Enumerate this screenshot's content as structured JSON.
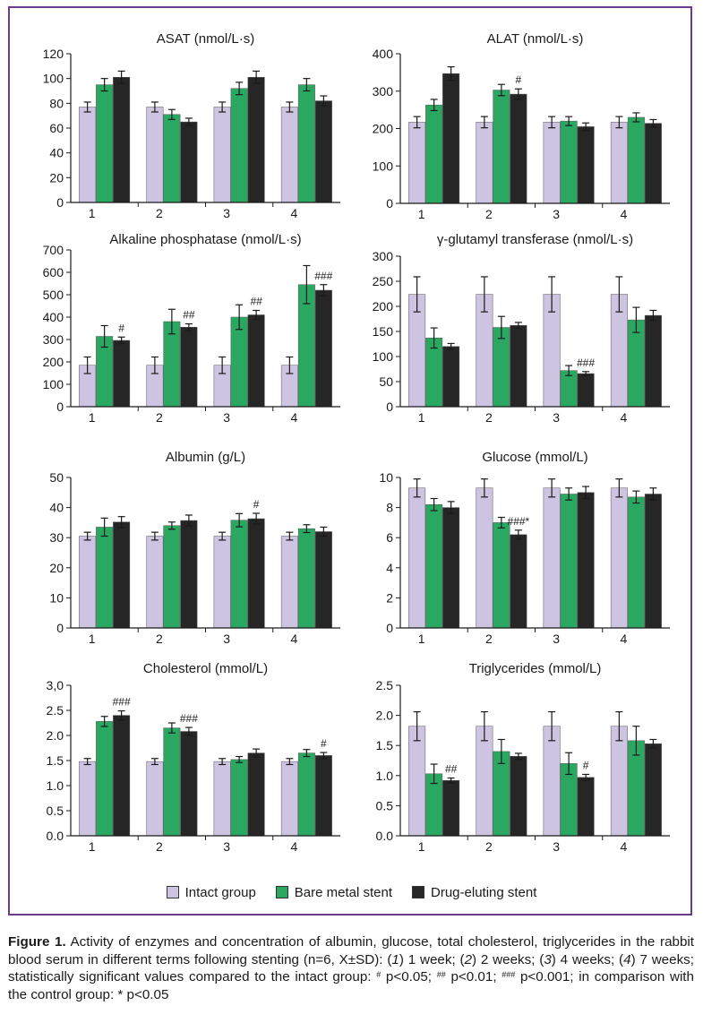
{
  "colors": {
    "frame": "#6b3b8c",
    "intact": "#cdc4e2",
    "bare": "#2aa862",
    "drug": "#262626"
  },
  "legend": {
    "items": [
      {
        "label": "Intact group",
        "color": "#cdc4e2"
      },
      {
        "label": "Bare metal stent",
        "color": "#2aa862"
      },
      {
        "label": "Drug-eluting stent",
        "color": "#262626"
      }
    ]
  },
  "caption": {
    "label": "Figure 1.",
    "text1": " Activity of enzymes and concentration of albumin, glucose, total cholesterol, triglycerides in the rabbit blood serum in different terms following stenting (n=6, X±SD): (",
    "t1": "1",
    "text2": ") 1 week; (",
    "t2": "2",
    "text3": ") 2 weeks; (",
    "t3": "3",
    "text4": ") 4 weeks; (",
    "t4": "4",
    "text5": ") 7 weeks; statistically significant values compared to the intact group: ",
    "sup1": "#",
    "text6": " p<0.05; ",
    "sup2": "##",
    "text7": " p<0.01; ",
    "sup3": "###",
    "text8": " p<0.001; in comparison with the control group: * p<0.05"
  },
  "chart_data": [
    {
      "type": "bar",
      "title": "ASAT (nmol/L·s)",
      "categories": [
        "1",
        "2",
        "3",
        "4"
      ],
      "yticks": [
        "0",
        "20",
        "40",
        "60",
        "80",
        "100",
        "120"
      ],
      "ylim": [
        0,
        120
      ],
      "series": [
        {
          "name": "Intact group",
          "values": [
            77,
            77,
            77,
            77
          ],
          "errors": [
            4,
            4,
            4,
            4
          ]
        },
        {
          "name": "Bare metal stent",
          "values": [
            95,
            71,
            92,
            95
          ],
          "errors": [
            5,
            4,
            5,
            5
          ]
        },
        {
          "name": "Drug-eluting stent",
          "values": [
            101,
            65,
            101,
            82
          ],
          "errors": [
            5,
            3,
            5,
            4
          ]
        }
      ],
      "annotations": []
    },
    {
      "type": "bar",
      "title": "ALAT (nmol/L·s)",
      "categories": [
        "1",
        "2",
        "3",
        "4"
      ],
      "yticks": [
        "0",
        "100",
        "200",
        "300",
        "400"
      ],
      "ylim": [
        0,
        400
      ],
      "series": [
        {
          "name": "Intact group",
          "values": [
            217,
            217,
            217,
            217
          ],
          "errors": [
            15,
            15,
            15,
            15
          ]
        },
        {
          "name": "Bare metal stent",
          "values": [
            263,
            303,
            220,
            230
          ],
          "errors": [
            15,
            15,
            12,
            12
          ]
        },
        {
          "name": "Drug-eluting stent",
          "values": [
            347,
            292,
            205,
            214
          ],
          "errors": [
            18,
            14,
            10,
            10
          ]
        }
      ],
      "annotations": [
        {
          "text": "#",
          "category": 1,
          "series": 2
        }
      ]
    },
    {
      "type": "bar",
      "title": "Alkaline phosphatase (nmol/L·s)",
      "categories": [
        "1",
        "2",
        "3",
        "4"
      ],
      "yticks": [
        "0",
        "100",
        "200",
        "300",
        "400",
        "500",
        "600",
        "700"
      ],
      "ylim": [
        0,
        700
      ],
      "series": [
        {
          "name": "Intact group",
          "values": [
            185,
            185,
            185,
            185
          ],
          "errors": [
            37,
            37,
            37,
            37
          ]
        },
        {
          "name": "Bare metal stent",
          "values": [
            314,
            380,
            400,
            545
          ],
          "errors": [
            48,
            55,
            55,
            85
          ]
        },
        {
          "name": "Drug-eluting stent",
          "values": [
            296,
            355,
            410,
            520
          ],
          "errors": [
            15,
            15,
            20,
            25
          ]
        }
      ],
      "annotations": [
        {
          "text": "#",
          "category": 0,
          "series": 2
        },
        {
          "text": "##",
          "category": 1,
          "series": 2
        },
        {
          "text": "##",
          "category": 2,
          "series": 2
        },
        {
          "text": "###",
          "category": 3,
          "series": 2
        }
      ]
    },
    {
      "type": "bar",
      "title": "γ-glutamyl transferase  (nmol/L·s)",
      "categories": [
        "1",
        "2",
        "3",
        "4"
      ],
      "yticks": [
        "0",
        "50",
        "100",
        "150",
        "200",
        "250",
        "300"
      ],
      "ylim": [
        0,
        300
      ],
      "series": [
        {
          "name": "Intact group",
          "values": [
            224,
            224,
            224,
            224
          ],
          "errors": [
            35,
            35,
            35,
            35
          ]
        },
        {
          "name": "Bare metal stent",
          "values": [
            137,
            158,
            72,
            173
          ],
          "errors": [
            20,
            22,
            10,
            25
          ]
        },
        {
          "name": "Drug-eluting stent",
          "values": [
            120,
            162,
            66,
            182
          ],
          "errors": [
            6,
            6,
            4,
            10
          ]
        }
      ],
      "annotations": [
        {
          "text": "###",
          "category": 2,
          "series": 2
        }
      ]
    },
    {
      "type": "bar",
      "title": "Albumin (g/L)",
      "categories": [
        "1",
        "2",
        "3",
        "4"
      ],
      "yticks": [
        "0",
        "10",
        "20",
        "30",
        "40",
        "50"
      ],
      "ylim": [
        0,
        50
      ],
      "series": [
        {
          "name": "Intact group",
          "values": [
            30.5,
            30.5,
            30.5,
            30.5
          ],
          "errors": [
            1.3,
            1.3,
            1.3,
            1.3
          ]
        },
        {
          "name": "Bare metal stent",
          "values": [
            33.5,
            34,
            35.8,
            33
          ],
          "errors": [
            3,
            1.2,
            2.2,
            1.3
          ]
        },
        {
          "name": "Drug-eluting stent",
          "values": [
            35.2,
            35.7,
            36.3,
            32
          ],
          "errors": [
            1.8,
            1.8,
            1.8,
            1.5
          ]
        }
      ],
      "annotations": [
        {
          "text": "#",
          "category": 2,
          "series": 2
        }
      ]
    },
    {
      "type": "bar",
      "title": "Glucose (mmol/L)",
      "categories": [
        "1",
        "2",
        "3",
        "4"
      ],
      "yticks": [
        "0",
        "2",
        "4",
        "6",
        "8",
        "10"
      ],
      "ylim": [
        0,
        10
      ],
      "series": [
        {
          "name": "Intact group",
          "values": [
            9.3,
            9.3,
            9.3,
            9.3
          ],
          "errors": [
            0.6,
            0.6,
            0.6,
            0.6
          ]
        },
        {
          "name": "Bare metal stent",
          "values": [
            8.2,
            7.0,
            8.9,
            8.7
          ],
          "errors": [
            0.4,
            0.35,
            0.4,
            0.4
          ]
        },
        {
          "name": "Drug-eluting stent",
          "values": [
            8.0,
            6.2,
            9.0,
            8.9
          ],
          "errors": [
            0.4,
            0.3,
            0.4,
            0.4
          ]
        }
      ],
      "annotations": [
        {
          "text": "###*",
          "category": 1,
          "series": 2
        }
      ]
    },
    {
      "type": "bar",
      "title": "Cholesterol (mmol/L)",
      "categories": [
        "1",
        "2",
        "3",
        "4"
      ],
      "yticks": [
        "0.0",
        "0.5",
        "1.0",
        "1.5",
        "2.0",
        "2.5",
        "3,0"
      ],
      "ylim": [
        0,
        3
      ],
      "series": [
        {
          "name": "Intact group",
          "values": [
            1.48,
            1.48,
            1.48,
            1.48
          ],
          "errors": [
            0.06,
            0.06,
            0.06,
            0.06
          ]
        },
        {
          "name": "Bare metal stent",
          "values": [
            2.28,
            2.15,
            1.52,
            1.65
          ],
          "errors": [
            0.1,
            0.1,
            0.06,
            0.07
          ]
        },
        {
          "name": "Drug-eluting stent",
          "values": [
            2.4,
            2.08,
            1.65,
            1.6
          ],
          "errors": [
            0.09,
            0.08,
            0.08,
            0.06
          ]
        }
      ],
      "annotations": [
        {
          "text": "###",
          "category": 0,
          "series": 2
        },
        {
          "text": "###",
          "category": 1,
          "series": 2
        },
        {
          "text": "#",
          "category": 3,
          "series": 2
        }
      ]
    },
    {
      "type": "bar",
      "title": "Triglycerides (mmol/L)",
      "categories": [
        "1",
        "2",
        "3",
        "4"
      ],
      "yticks": [
        "0.0",
        "0.5",
        "1.0",
        "1.5",
        "2.0",
        "2.5"
      ],
      "ylim": [
        0,
        2.5
      ],
      "series": [
        {
          "name": "Intact group",
          "values": [
            1.82,
            1.82,
            1.82,
            1.82
          ],
          "errors": [
            0.24,
            0.24,
            0.24,
            0.24
          ]
        },
        {
          "name": "Bare metal stent",
          "values": [
            1.03,
            1.4,
            1.2,
            1.58
          ],
          "errors": [
            0.16,
            0.2,
            0.18,
            0.24
          ]
        },
        {
          "name": "Drug-eluting stent",
          "values": [
            0.92,
            1.32,
            0.97,
            1.53
          ],
          "errors": [
            0.04,
            0.05,
            0.05,
            0.07
          ]
        }
      ],
      "annotations": [
        {
          "text": "##",
          "category": 0,
          "series": 2
        },
        {
          "text": "#",
          "category": 2,
          "series": 2
        }
      ]
    }
  ]
}
